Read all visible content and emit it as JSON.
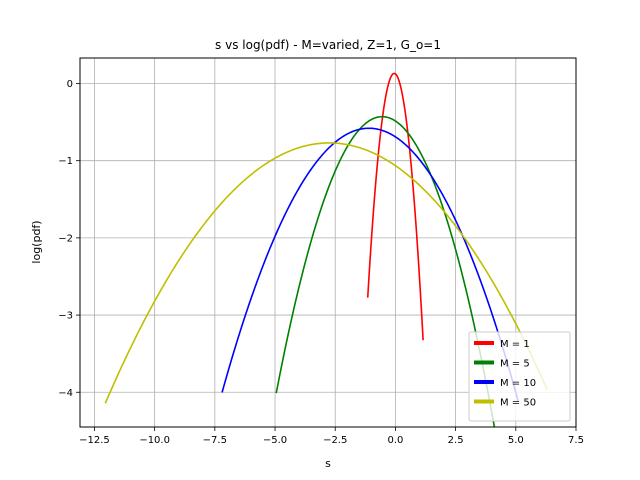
{
  "chart_data": {
    "type": "line",
    "title": "s vs log(pdf) - M=varied, Z=1, G_o=1",
    "xlabel": "s",
    "ylabel": "log(pdf)",
    "xlim": [
      -13.1,
      7.5
    ],
    "ylim": [
      -4.45,
      0.33
    ],
    "xticks": [
      -12.5,
      -10.0,
      -7.5,
      -5.0,
      -2.5,
      0.0,
      2.5,
      5.0,
      7.5
    ],
    "xtick_labels": [
      "−12.5",
      "−10.0",
      "−7.5",
      "−5.0",
      "−2.5",
      "0.0",
      "2.5",
      "5.0",
      "7.5"
    ],
    "yticks": [
      0,
      -1,
      -2,
      -3,
      -4
    ],
    "ytick_labels": [
      "0",
      "−1",
      "−2",
      "−3",
      "−4"
    ],
    "grid": true,
    "legend_position": "lower-right",
    "series": [
      {
        "name": "M = 1",
        "color": "#ff0000",
        "peak_x": -0.05,
        "peak_y": 0.13,
        "curvature": 2.4,
        "x_range": [
          -1.15,
          1.15
        ]
      },
      {
        "name": "M = 5",
        "color": "#008000",
        "peak_x": -0.55,
        "peak_y": -0.43,
        "curvature": 0.185,
        "x_range": [
          -4.95,
          4.15
        ]
      },
      {
        "name": "M = 10",
        "color": "#0000ff",
        "peak_x": -1.1,
        "peak_y": -0.58,
        "curvature": 0.092,
        "x_range": [
          -7.2,
          5.1
        ]
      },
      {
        "name": "M = 50",
        "color": "#bfbf00",
        "peak_x": -2.75,
        "peak_y": -0.77,
        "curvature": 0.039,
        "x_range": [
          -12.05,
          6.3
        ]
      }
    ]
  }
}
